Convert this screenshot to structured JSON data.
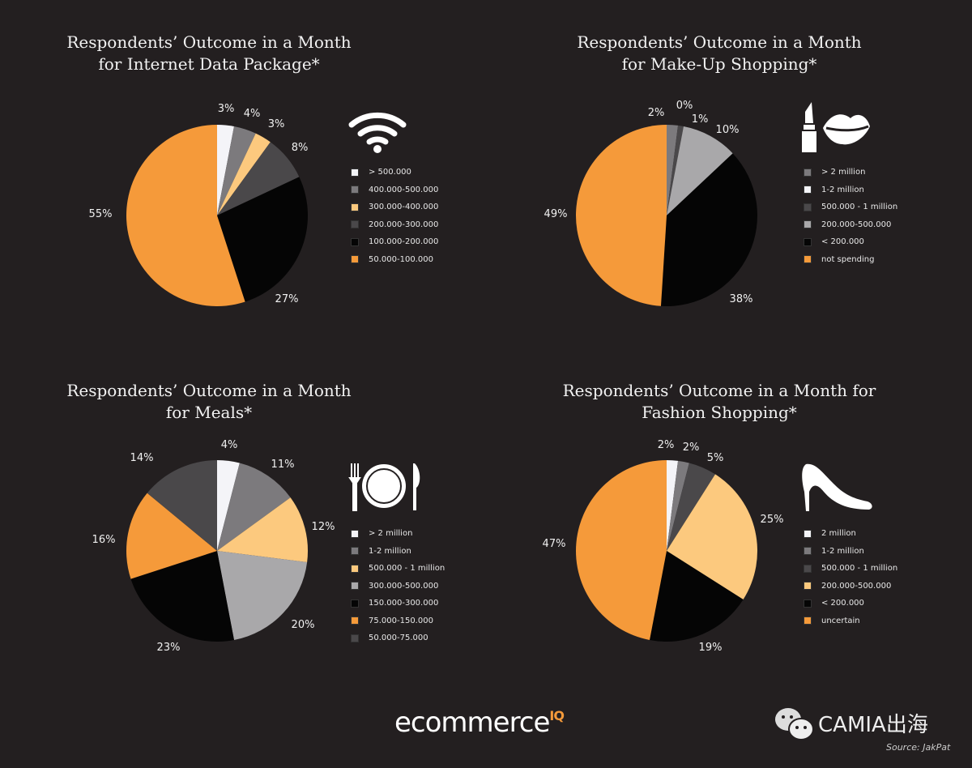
{
  "colors": {
    "background": "#231f20",
    "white": "#f4f4f8",
    "gray": "#7c7a7d",
    "light_orange": "#fcc97e",
    "dark_gray": "#4a484a",
    "black": "#050505",
    "orange": "#f59a3a",
    "light_gray": "#a9a8aa"
  },
  "chart_data": [
    {
      "type": "pie",
      "title": "Respondents’ Outcome in a Month for Internet Data Package*",
      "title_lines": [
        "Respondents’ Outcome in a Month",
        "for Internet Data Package*"
      ],
      "icon": "wifi-icon",
      "categories": [
        "> 500.000",
        "400.000-500.000",
        "300.000-400.000",
        "200.000-300.000",
        "100.000-200.000",
        "50.000-100.000"
      ],
      "values": [
        3,
        4,
        3,
        8,
        27,
        55
      ],
      "labels": [
        "3%",
        "4%",
        "3%",
        "8%",
        "27%",
        "55%"
      ],
      "colors": [
        "#f4f4f8",
        "#7c7a7d",
        "#fcc97e",
        "#4a484a",
        "#050505",
        "#f59a3a"
      ]
    },
    {
      "type": "pie",
      "title": "Respondents’ Outcome in a Month for Make-Up Shopping*",
      "title_lines": [
        "Respondents’ Outcome in a Month",
        "for Make-Up Shopping*"
      ],
      "icon": "lipstick-lips-icon",
      "categories": [
        "> 2 million",
        "1-2 million",
        "500.000 - 1 million",
        "200.000-500.000",
        "< 200.000",
        "not spending"
      ],
      "values": [
        2,
        0,
        1,
        10,
        38,
        49
      ],
      "labels": [
        "2%",
        "0%",
        "1%",
        "10%",
        "38%",
        "49%"
      ],
      "colors": [
        "#7c7a7d",
        "#f4f4f8",
        "#4a484a",
        "#a9a8aa",
        "#050505",
        "#f59a3a"
      ]
    },
    {
      "type": "pie",
      "title": "Respondents’ Outcome in a Month for Meals*",
      "title_lines": [
        "Respondents’ Outcome in a Month",
        "for Meals*"
      ],
      "icon": "plate-cutlery-icon",
      "categories": [
        "> 2 million",
        "1-2 million",
        "500.000 - 1 million",
        "300.000-500.000",
        "150.000-300.000",
        "75.000-150.000",
        "50.000-75.000"
      ],
      "values": [
        4,
        11,
        12,
        20,
        23,
        16,
        14
      ],
      "labels": [
        "4%",
        "11%",
        "12%",
        "20%",
        "23%",
        "16%",
        "14%"
      ],
      "colors": [
        "#f4f4f8",
        "#7c7a7d",
        "#fcc97e",
        "#a9a8aa",
        "#050505",
        "#f59a3a",
        "#4a484a"
      ]
    },
    {
      "type": "pie",
      "title": "Respondents’ Outcome in a Month for Fashion Shopping*",
      "title_lines": [
        "Respondents’ Outcome in a Month for",
        "Fashion Shopping*"
      ],
      "icon": "high-heel-icon",
      "categories": [
        "2 million",
        "1-2 million",
        "500.000 - 1 million",
        "200.000-500.000",
        "< 200.000",
        "uncertain"
      ],
      "values": [
        2,
        2,
        5,
        25,
        19,
        47
      ],
      "labels": [
        "2%",
        "2%",
        "5%",
        "25%",
        "19%",
        "47%"
      ],
      "colors": [
        "#f4f4f8",
        "#7c7a7d",
        "#4a484a",
        "#fcc97e",
        "#050505",
        "#f59a3a"
      ]
    }
  ],
  "footer": {
    "logo": "ecommerce",
    "logo_sup": "IQ",
    "wechat": "CAMIA出海",
    "source": "Source: JakPat"
  }
}
